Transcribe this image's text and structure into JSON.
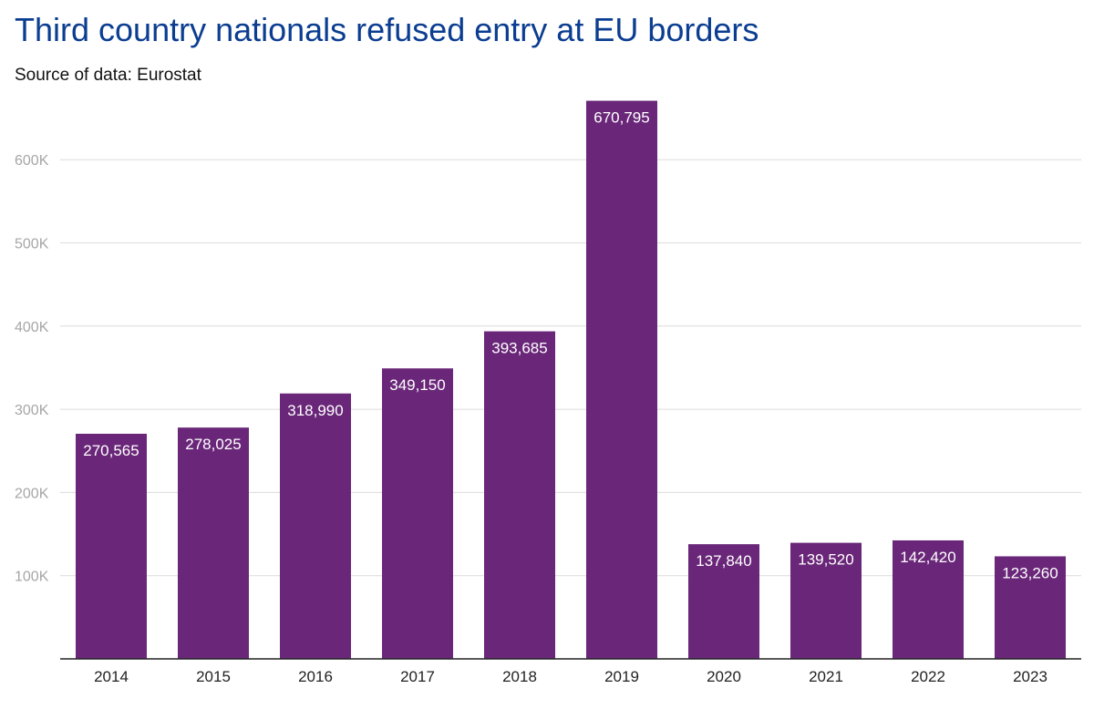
{
  "chart_data": {
    "type": "bar",
    "title": "Third country nationals refused entry at EU borders",
    "subtitle": "Source of data: Eurostat",
    "xlabel": "",
    "ylabel": "",
    "ylim": [
      0,
      700000
    ],
    "yticks": [
      100000,
      200000,
      300000,
      400000,
      500000,
      600000
    ],
    "ytick_labels": [
      "100K",
      "200K",
      "300K",
      "400K",
      "500K",
      "600K"
    ],
    "grid": true,
    "bar_color": "#6a2779",
    "categories": [
      "2014",
      "2015",
      "2016",
      "2017",
      "2018",
      "2019",
      "2020",
      "2021",
      "2022",
      "2023"
    ],
    "values": [
      270565,
      278025,
      318990,
      349150,
      393685,
      670795,
      137840,
      139520,
      142420,
      123260
    ],
    "value_labels": [
      "270,565",
      "278,025",
      "318,990",
      "349,150",
      "393,685",
      "670,795",
      "137,840",
      "139,520",
      "142,420",
      "123,260"
    ]
  }
}
